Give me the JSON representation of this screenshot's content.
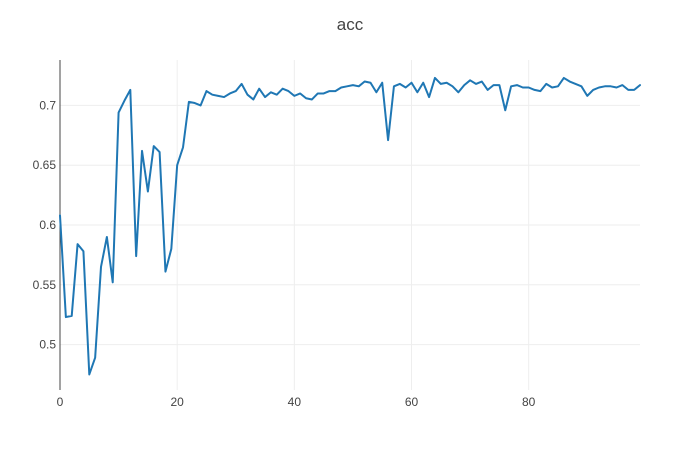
{
  "chart_data": {
    "type": "line",
    "title": "acc",
    "xlabel": "",
    "ylabel": "",
    "xlim": [
      0,
      99
    ],
    "ylim": [
      0.462,
      0.738
    ],
    "xticks": [
      0,
      20,
      40,
      60,
      80
    ],
    "yticks": [
      0.5,
      0.55,
      0.6,
      0.65,
      0.7
    ],
    "ytick_labels": [
      "0.5",
      "0.55",
      "0.6",
      "0.65",
      "0.7"
    ],
    "grid": true,
    "legend": "none",
    "series": [
      {
        "color": "#1f77b4",
        "x": [
          0,
          1,
          2,
          3,
          4,
          5,
          6,
          7,
          8,
          9,
          10,
          11,
          12,
          13,
          14,
          15,
          16,
          17,
          18,
          19,
          20,
          21,
          22,
          23,
          24,
          25,
          26,
          27,
          28,
          29,
          30,
          31,
          32,
          33,
          34,
          35,
          36,
          37,
          38,
          39,
          40,
          41,
          42,
          43,
          44,
          45,
          46,
          47,
          48,
          49,
          50,
          51,
          52,
          53,
          54,
          55,
          56,
          57,
          58,
          59,
          60,
          61,
          62,
          63,
          64,
          65,
          66,
          67,
          68,
          69,
          70,
          71,
          72,
          73,
          74,
          75,
          76,
          77,
          78,
          79,
          80,
          81,
          82,
          83,
          84,
          85,
          86,
          87,
          88,
          89,
          90,
          91,
          92,
          93,
          94,
          95,
          96,
          97,
          98,
          99
        ],
        "values": [
          0.608,
          0.523,
          0.524,
          0.584,
          0.578,
          0.475,
          0.489,
          0.565,
          0.59,
          0.552,
          0.694,
          0.704,
          0.713,
          0.574,
          0.662,
          0.628,
          0.666,
          0.661,
          0.561,
          0.58,
          0.65,
          0.665,
          0.703,
          0.702,
          0.7,
          0.712,
          0.709,
          0.708,
          0.707,
          0.71,
          0.712,
          0.718,
          0.709,
          0.705,
          0.714,
          0.707,
          0.711,
          0.709,
          0.714,
          0.712,
          0.708,
          0.71,
          0.706,
          0.705,
          0.71,
          0.71,
          0.712,
          0.712,
          0.715,
          0.716,
          0.717,
          0.716,
          0.72,
          0.719,
          0.711,
          0.719,
          0.671,
          0.716,
          0.718,
          0.715,
          0.719,
          0.711,
          0.719,
          0.707,
          0.723,
          0.718,
          0.719,
          0.716,
          0.711,
          0.717,
          0.721,
          0.718,
          0.72,
          0.713,
          0.717,
          0.717,
          0.696,
          0.716,
          0.717,
          0.715,
          0.715,
          0.713,
          0.712,
          0.718,
          0.715,
          0.716,
          0.723,
          0.72,
          0.718,
          0.716,
          0.708,
          0.713,
          0.715,
          0.716,
          0.716,
          0.715,
          0.717,
          0.713,
          0.713,
          0.717
        ]
      }
    ]
  }
}
